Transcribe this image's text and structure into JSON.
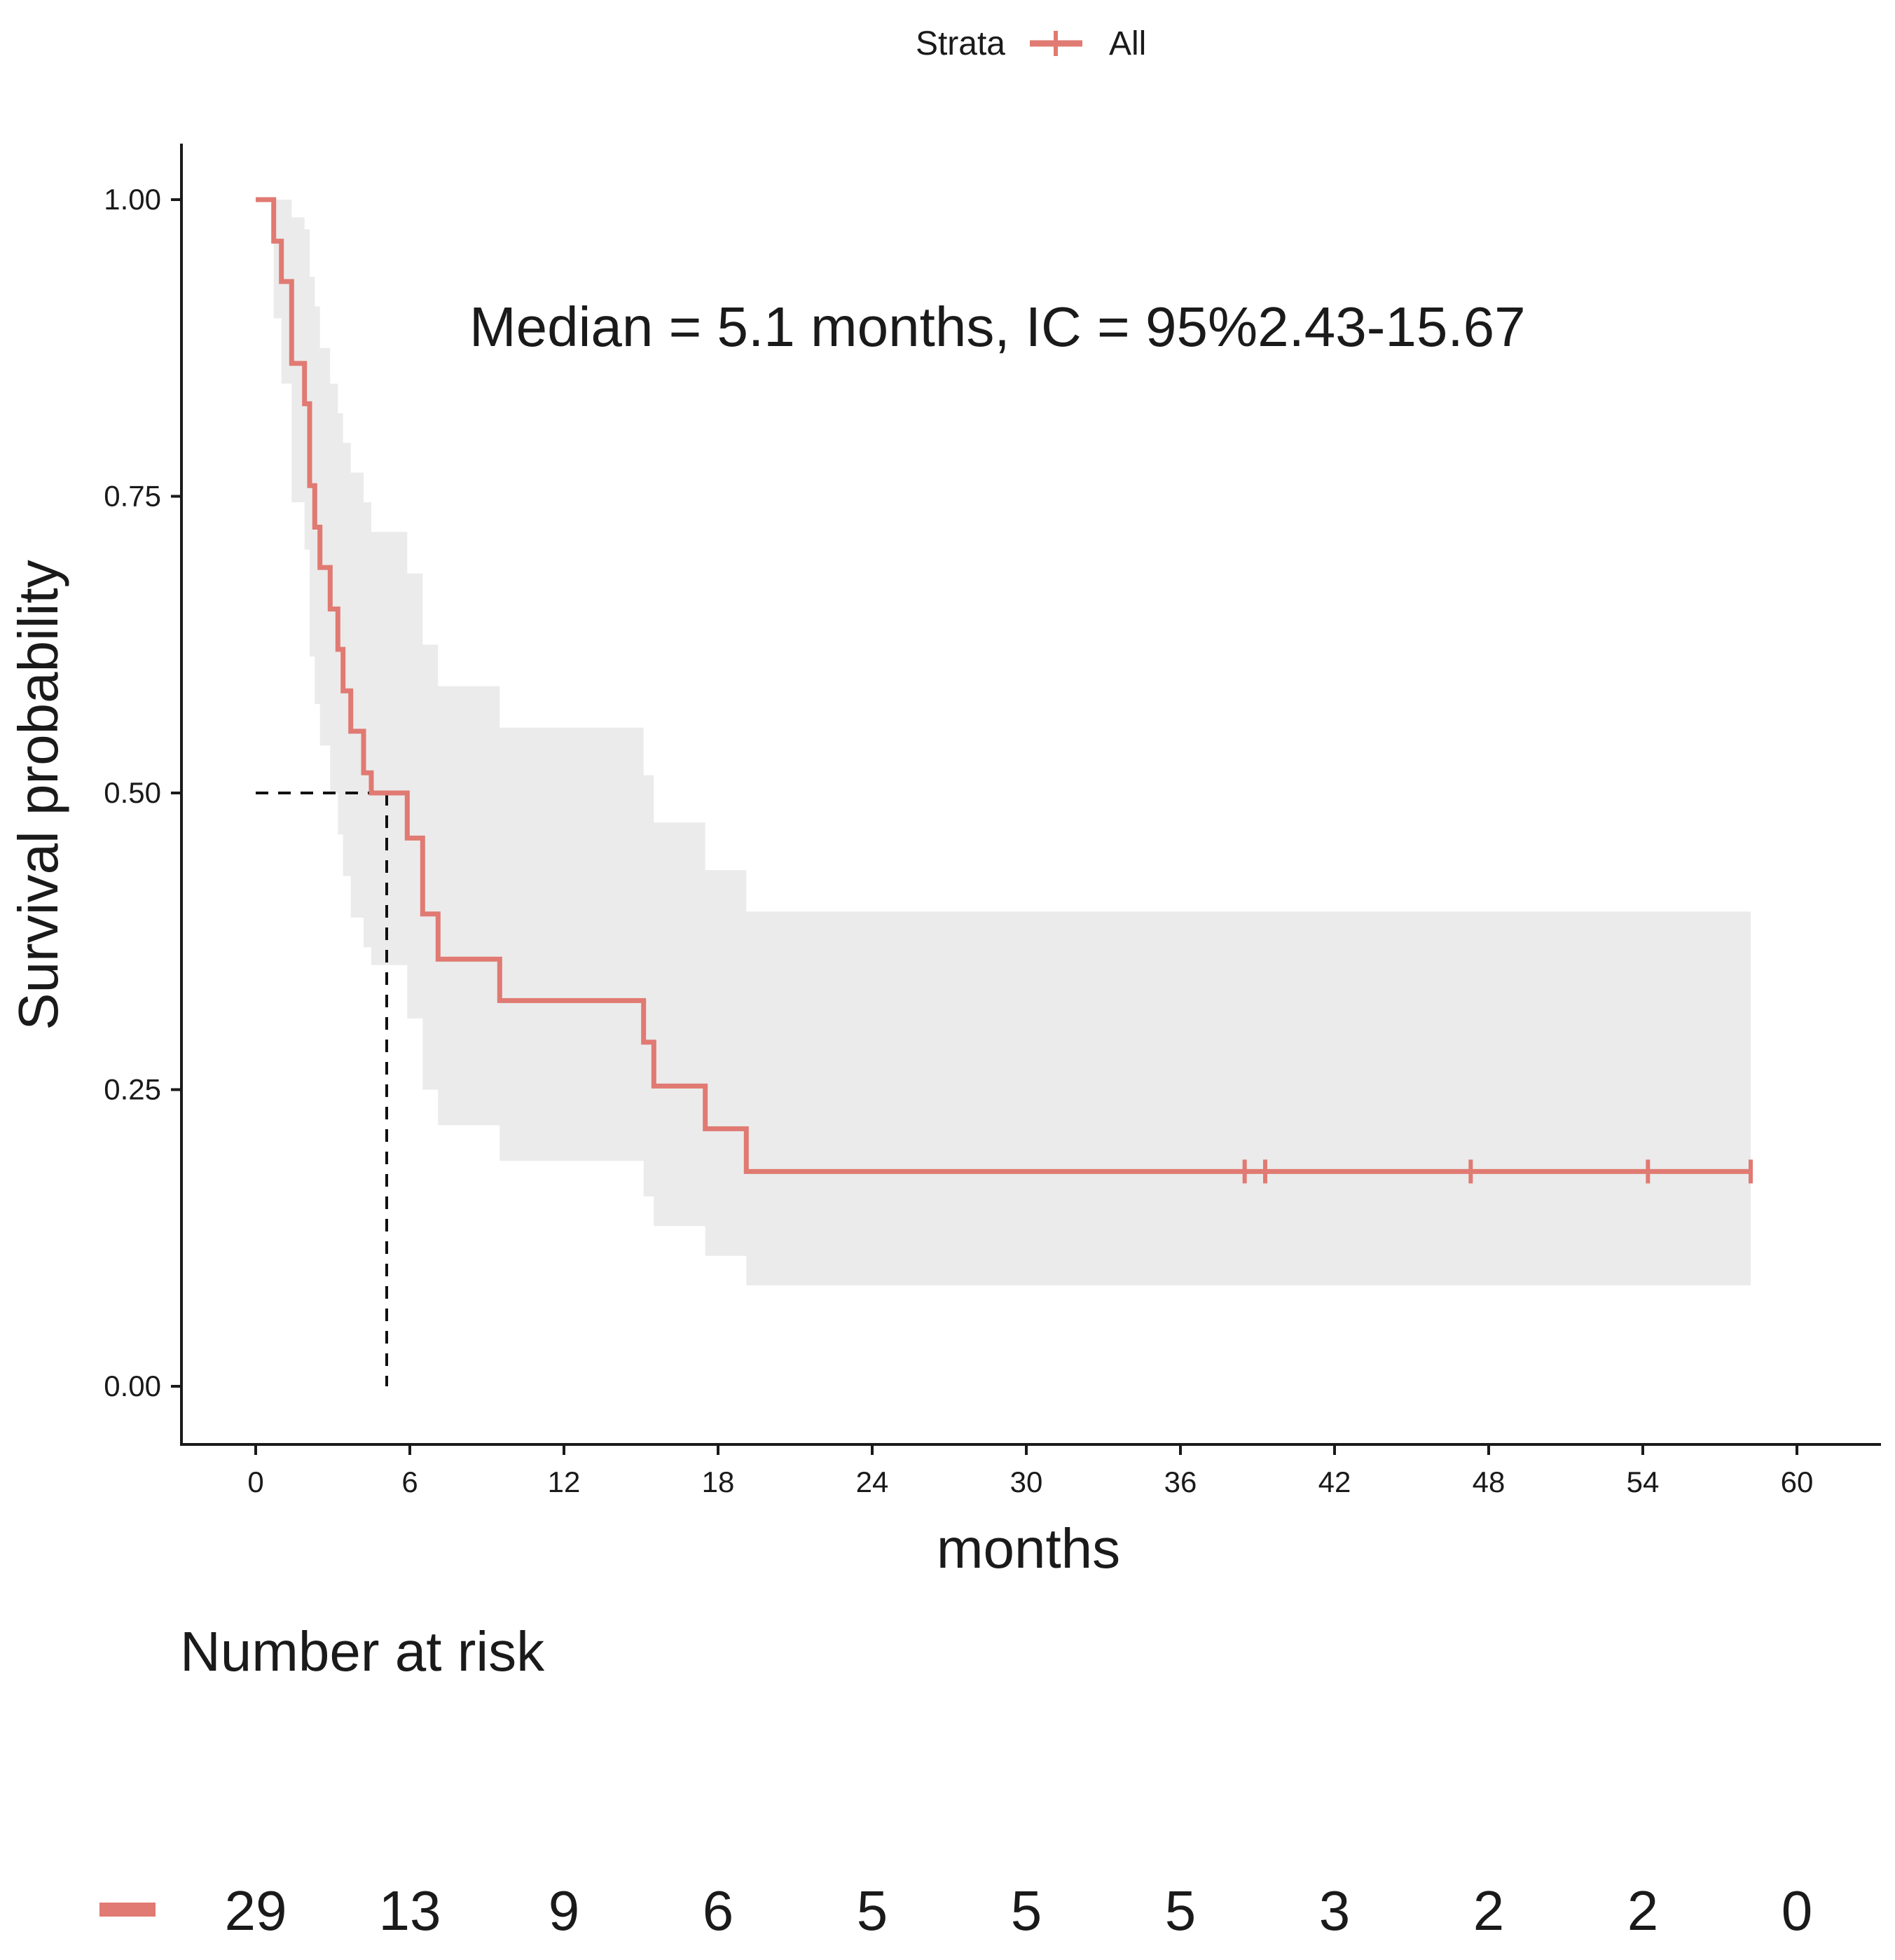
{
  "chart_data": {
    "type": "line",
    "subtype": "kaplan-meier",
    "xlabel": "months",
    "ylabel": "Survival probability",
    "xlim": [
      0,
      60
    ],
    "ylim": [
      0,
      1
    ],
    "x_ticks": [
      0,
      6,
      12,
      18,
      24,
      30,
      36,
      42,
      48,
      54,
      60
    ],
    "x_tick_labels": [
      "0",
      "6",
      "12",
      "18",
      "24",
      "30",
      "36",
      "42",
      "48",
      "54",
      "60"
    ],
    "y_ticks": [
      0,
      0.25,
      0.5,
      0.75,
      1.0
    ],
    "y_tick_labels": [
      "0.00",
      "0.25",
      "0.50",
      "0.75",
      "1.00"
    ],
    "grid": false,
    "legend": {
      "title": "Strata",
      "position": "top",
      "entries": [
        "All"
      ]
    },
    "colors": {
      "series": "#e07a72",
      "ci": "#ebebeb",
      "axis": "#1a1a1a",
      "median_line": "#111111"
    },
    "annotation": "Median = 5.1  months, IC = 95%2.43-15.67",
    "median": {
      "time": 5.1,
      "survival": 0.5
    },
    "series": [
      {
        "name": "All",
        "steps": [
          {
            "t": 0,
            "s": 1.0
          },
          {
            "t": 0.7,
            "s": 0.965
          },
          {
            "t": 1.0,
            "s": 0.931
          },
          {
            "t": 1.4,
            "s": 0.862
          },
          {
            "t": 1.9,
            "s": 0.828
          },
          {
            "t": 2.1,
            "s": 0.759
          },
          {
            "t": 2.3,
            "s": 0.724
          },
          {
            "t": 2.5,
            "s": 0.69
          },
          {
            "t": 2.9,
            "s": 0.655
          },
          {
            "t": 3.2,
            "s": 0.621
          },
          {
            "t": 3.4,
            "s": 0.586
          },
          {
            "t": 3.7,
            "s": 0.552
          },
          {
            "t": 4.2,
            "s": 0.517
          },
          {
            "t": 4.5,
            "s": 0.5
          },
          {
            "t": 5.9,
            "s": 0.462
          },
          {
            "t": 6.5,
            "s": 0.398
          },
          {
            "t": 7.1,
            "s": 0.36
          },
          {
            "t": 9.5,
            "s": 0.325
          },
          {
            "t": 15.1,
            "s": 0.29
          },
          {
            "t": 15.5,
            "s": 0.253
          },
          {
            "t": 17.5,
            "s": 0.217
          },
          {
            "t": 19.1,
            "s": 0.181
          }
        ],
        "end_time": 58.2,
        "censored": [
          38.5,
          39.3,
          47.3,
          54.2,
          58.2
        ],
        "ci": [
          {
            "t": 0,
            "lower": 1.0,
            "upper": 1.0
          },
          {
            "t": 0.7,
            "lower": 0.9,
            "upper": 1.0
          },
          {
            "t": 1.0,
            "lower": 0.845,
            "upper": 1.0
          },
          {
            "t": 1.4,
            "lower": 0.745,
            "upper": 0.985
          },
          {
            "t": 1.9,
            "lower": 0.705,
            "upper": 0.975
          },
          {
            "t": 2.1,
            "lower": 0.615,
            "upper": 0.935
          },
          {
            "t": 2.3,
            "lower": 0.575,
            "upper": 0.91
          },
          {
            "t": 2.5,
            "lower": 0.54,
            "upper": 0.875
          },
          {
            "t": 2.9,
            "lower": 0.5,
            "upper": 0.845
          },
          {
            "t": 3.2,
            "lower": 0.465,
            "upper": 0.82
          },
          {
            "t": 3.4,
            "lower": 0.43,
            "upper": 0.795
          },
          {
            "t": 3.7,
            "lower": 0.395,
            "upper": 0.77
          },
          {
            "t": 4.2,
            "lower": 0.37,
            "upper": 0.745
          },
          {
            "t": 4.5,
            "lower": 0.355,
            "upper": 0.72
          },
          {
            "t": 5.9,
            "lower": 0.31,
            "upper": 0.685
          },
          {
            "t": 6.5,
            "lower": 0.25,
            "upper": 0.625
          },
          {
            "t": 7.1,
            "lower": 0.22,
            "upper": 0.59
          },
          {
            "t": 9.5,
            "lower": 0.19,
            "upper": 0.555
          },
          {
            "t": 15.1,
            "lower": 0.16,
            "upper": 0.515
          },
          {
            "t": 15.5,
            "lower": 0.135,
            "upper": 0.475
          },
          {
            "t": 17.5,
            "lower": 0.11,
            "upper": 0.435
          },
          {
            "t": 19.1,
            "lower": 0.085,
            "upper": 0.4
          }
        ]
      }
    ],
    "risk_table": {
      "title": "Number at risk",
      "times": [
        0,
        6,
        12,
        18,
        24,
        30,
        36,
        42,
        48,
        54,
        60
      ],
      "values": [
        "29",
        "13",
        "9",
        "6",
        "5",
        "5",
        "5",
        "3",
        "2",
        "2",
        "0"
      ]
    }
  }
}
